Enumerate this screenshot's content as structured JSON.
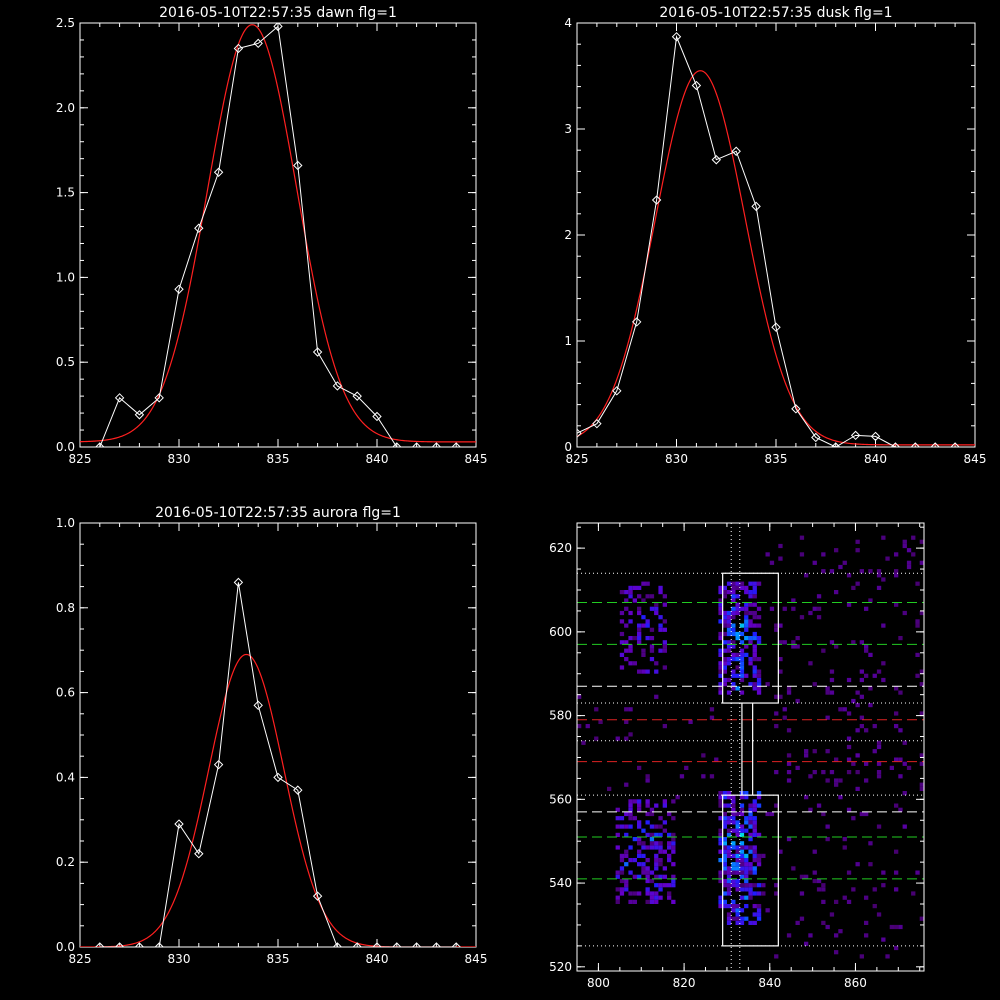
{
  "colors": {
    "background": "#000000",
    "data_line": "#ffffff",
    "fit_line": "#ff2020",
    "green_dash": "#22cc22",
    "red_dash": "#dd2222",
    "white_dash": "#ffffff"
  },
  "chart_data": [
    {
      "id": "dawn",
      "type": "line",
      "title": "2016-05-10T22:57:35 dawn flg=1",
      "xlim": [
        825,
        845
      ],
      "ylim": [
        0,
        2.5
      ],
      "xticks": [
        825,
        830,
        835,
        840,
        845
      ],
      "yticks": [
        0.0,
        0.5,
        1.0,
        1.5,
        2.0,
        2.5
      ],
      "ytick_labels": [
        "0.0",
        "0.5",
        "1.0",
        "1.5",
        "2.0",
        "2.5"
      ],
      "series": [
        {
          "role": "data",
          "marker": "diamond",
          "x": [
            826,
            827,
            828,
            829,
            830,
            831,
            832,
            833,
            834,
            835,
            836,
            837,
            838,
            839,
            840,
            841,
            842,
            843,
            844
          ],
          "y": [
            0.0,
            0.29,
            0.19,
            0.29,
            0.93,
            1.29,
            1.62,
            2.35,
            2.38,
            2.48,
            1.66,
            0.56,
            0.36,
            0.3,
            0.18,
            0.0,
            0.0,
            0.0,
            0.0
          ]
        },
        {
          "role": "fit",
          "gaussian": {
            "amplitude": 2.46,
            "center": 833.7,
            "sigma": 2.25,
            "offset": 0.03
          }
        }
      ]
    },
    {
      "id": "dusk",
      "type": "line",
      "title": "2016-05-10T22:57:35 dusk flg=1",
      "xlim": [
        825,
        845
      ],
      "ylim": [
        0,
        4
      ],
      "xticks": [
        825,
        830,
        835,
        840,
        845
      ],
      "yticks": [
        0,
        1,
        2,
        3,
        4
      ],
      "ytick_labels": [
        "0",
        "1",
        "2",
        "3",
        "4"
      ],
      "series": [
        {
          "role": "data",
          "marker": "diamond",
          "x": [
            825,
            826,
            827,
            828,
            829,
            830,
            831,
            832,
            833,
            834,
            835,
            836,
            837,
            838,
            839,
            840,
            841,
            842,
            843,
            844
          ],
          "y": [
            0.13,
            0.22,
            0.53,
            1.18,
            2.33,
            3.87,
            3.41,
            2.71,
            2.79,
            2.27,
            1.13,
            0.36,
            0.09,
            0.0,
            0.11,
            0.1,
            0.0,
            0.0,
            0.0,
            0.0
          ]
        },
        {
          "role": "fit",
          "gaussian": {
            "amplitude": 3.53,
            "center": 831.2,
            "sigma": 2.25,
            "offset": 0.02
          }
        }
      ]
    },
    {
      "id": "aurora",
      "type": "line",
      "title": "2016-05-10T22:57:35 aurora flg=1",
      "xlim": [
        825,
        845
      ],
      "ylim": [
        0,
        1
      ],
      "xticks": [
        825,
        830,
        835,
        840,
        845
      ],
      "yticks": [
        0.0,
        0.2,
        0.4,
        0.6,
        0.8,
        1.0
      ],
      "ytick_labels": [
        "0.0",
        "0.2",
        "0.4",
        "0.6",
        "0.8",
        "1.0"
      ],
      "series": [
        {
          "role": "data",
          "marker": "diamond",
          "x": [
            826,
            827,
            828,
            829,
            830,
            831,
            832,
            833,
            834,
            835,
            836,
            837,
            838,
            839,
            840,
            841,
            842,
            843,
            844
          ],
          "y": [
            0.0,
            0.0,
            0.0,
            0.0,
            0.29,
            0.22,
            0.43,
            0.86,
            0.57,
            0.4,
            0.37,
            0.12,
            0.0,
            0.0,
            0.0,
            0.0,
            0.0,
            0.0,
            0.0
          ]
        },
        {
          "role": "fit",
          "gaussian": {
            "amplitude": 0.69,
            "center": 833.4,
            "sigma": 1.9,
            "offset": 0.0
          }
        }
      ]
    },
    {
      "id": "image",
      "type": "heatmap",
      "title": "",
      "xlim": [
        795,
        876
      ],
      "ylim": [
        519,
        626
      ],
      "xticks": [
        800,
        820,
        840,
        860
      ],
      "yticks": [
        520,
        540,
        560,
        580,
        600,
        620
      ],
      "clusters": [
        {
          "x": [
            805,
            816
          ],
          "y": [
            590,
            612
          ],
          "density": 0.35,
          "peak": 0.55
        },
        {
          "x": [
            804,
            818
          ],
          "y": [
            535,
            560
          ],
          "density": 0.45,
          "peak": 0.65
        },
        {
          "x": [
            828,
            838
          ],
          "y": [
            585,
            612
          ],
          "density": 0.55,
          "peak": 0.75
        },
        {
          "x": [
            828,
            838
          ],
          "y": [
            530,
            562
          ],
          "density": 0.6,
          "peak": 0.85
        },
        {
          "x": [
            838,
            876
          ],
          "y": [
            522,
            624
          ],
          "density": 0.06,
          "peak": 0.15
        },
        {
          "x": [
            795,
            830
          ],
          "y": [
            560,
            585
          ],
          "density": 0.04,
          "peak": 0.12
        }
      ],
      "boxes": [
        {
          "x": [
            829,
            842
          ],
          "y": [
            583,
            614
          ]
        },
        {
          "x": [
            829,
            842
          ],
          "y": [
            525,
            561
          ]
        }
      ],
      "vertical_lines": [
        {
          "x": 831,
          "style": "dotted",
          "color": "#ffffff"
        },
        {
          "x": 833,
          "style": "dotted",
          "color": "#ffffff"
        }
      ],
      "horizontal_lines": [
        {
          "y": 614,
          "style": "dotted",
          "color": "#ffffff"
        },
        {
          "y": 607,
          "style": "dashed",
          "color": "#22cc22"
        },
        {
          "y": 597,
          "style": "dashed",
          "color": "#22cc22"
        },
        {
          "y": 587,
          "style": "dashed",
          "color": "#ffffff"
        },
        {
          "y": 583,
          "style": "dotted",
          "color": "#ffffff"
        },
        {
          "y": 579,
          "style": "dashed",
          "color": "#dd2222"
        },
        {
          "y": 574,
          "style": "dotted",
          "color": "#ffffff"
        },
        {
          "y": 569,
          "style": "dashed",
          "color": "#dd2222"
        },
        {
          "y": 561,
          "style": "dotted",
          "color": "#ffffff"
        },
        {
          "y": 557,
          "style": "dashed",
          "color": "#ffffff"
        },
        {
          "y": 551,
          "style": "dashed",
          "color": "#22cc22"
        },
        {
          "y": 541,
          "style": "dashed",
          "color": "#22cc22"
        },
        {
          "y": 525,
          "style": "dotted",
          "color": "#ffffff"
        }
      ]
    }
  ]
}
